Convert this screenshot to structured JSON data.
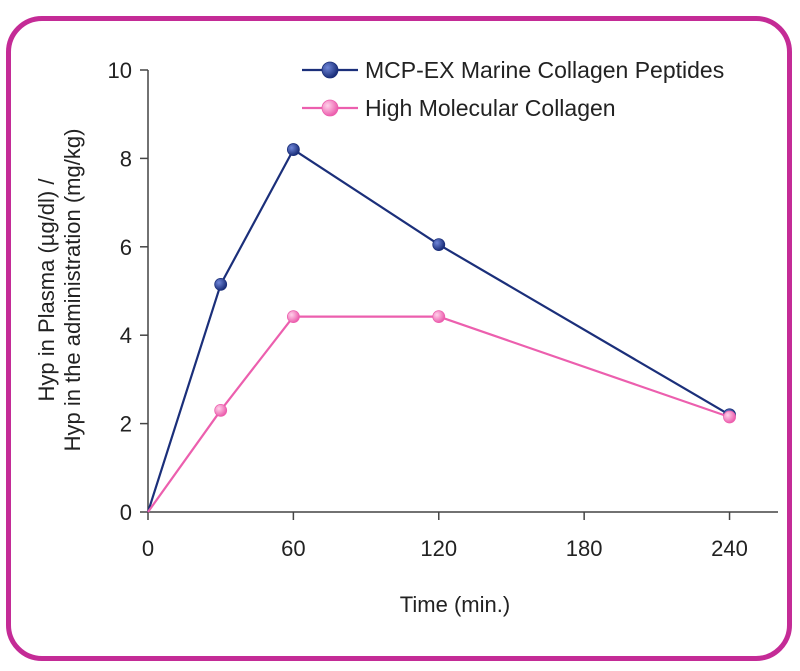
{
  "chart_data": {
    "type": "line",
    "xlabel": "Time (min.)",
    "ylabel_lines": [
      "Hyp in Plasma (µg/dl) /",
      "Hyp in the administration (mg/kg)"
    ],
    "x_ticks": [
      0,
      60,
      120,
      180,
      240
    ],
    "y_ticks": [
      0,
      2,
      4,
      6,
      8,
      10
    ],
    "xlim": [
      0,
      260
    ],
    "ylim": [
      0,
      10
    ],
    "grid": false,
    "legend_position": "top-right",
    "series": [
      {
        "name": "MCP-EX Marine Collagen Peptides",
        "color": "#1b2f7a",
        "x": [
          0,
          30,
          60,
          120,
          240
        ],
        "y": [
          0,
          5.15,
          8.2,
          6.05,
          2.2
        ]
      },
      {
        "name": "High Molecular Collagen",
        "color": "#ec5fae",
        "x": [
          0,
          30,
          60,
          120,
          240
        ],
        "y": [
          0,
          2.3,
          4.42,
          4.42,
          2.15
        ]
      }
    ]
  }
}
